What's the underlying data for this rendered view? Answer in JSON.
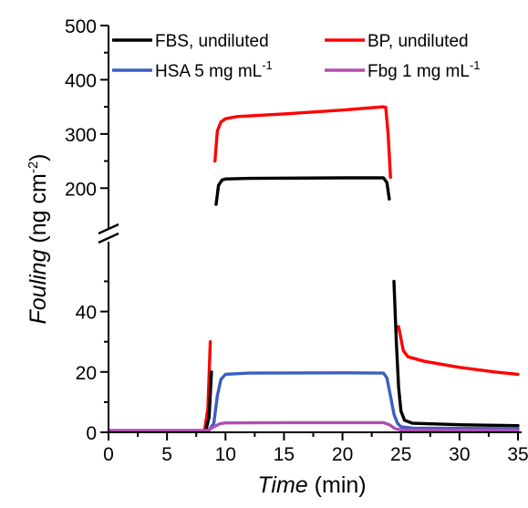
{
  "chart_data": {
    "type": "line",
    "xlabel": {
      "italic": "Time",
      "rest": " (min)"
    },
    "ylabel": {
      "italic": "Fouling",
      "rest": " (ng cm",
      "sup": "-2",
      "close": ")"
    },
    "xlim": [
      0,
      35
    ],
    "x_ticks": [
      "0",
      "5",
      "10",
      "15",
      "20",
      "25",
      "30",
      "35"
    ],
    "y_ticks_lower": [
      "0",
      "20",
      "40"
    ],
    "y_ticks_upper": [
      "200",
      "300",
      "400",
      "500"
    ],
    "y_axis_break": {
      "lower_range": [
        0,
        58
      ],
      "upper_range": [
        150,
        500
      ]
    },
    "legend": [
      {
        "text": "FBS, undiluted",
        "sup": "",
        "color": "#000000"
      },
      {
        "text": "BP, undiluted",
        "sup": "",
        "color": "#ff0000"
      },
      {
        "text": "HSA 5 mg mL",
        "sup": "-1",
        "color": "#3b5fc0"
      },
      {
        "text": "Fbg 1 mg mL",
        "sup": "-1",
        "color": "#b04fb0"
      }
    ],
    "series": [
      {
        "name": "BP, undiluted",
        "color": "#ff0000",
        "points": [
          [
            0,
            0
          ],
          [
            8.2,
            0.3
          ],
          [
            8.5,
            8
          ],
          [
            8.7,
            30
          ],
          [
            8.9,
            120
          ],
          [
            9.1,
            250
          ],
          [
            9.3,
            305
          ],
          [
            9.6,
            322
          ],
          [
            10,
            328
          ],
          [
            11,
            332
          ],
          [
            15,
            337
          ],
          [
            20,
            344
          ],
          [
            23.5,
            350
          ],
          [
            23.7,
            349
          ],
          [
            23.9,
            300
          ],
          [
            24.1,
            220
          ],
          [
            24.3,
            140
          ],
          [
            24.5,
            60
          ],
          [
            24.8,
            35
          ],
          [
            25.2,
            27
          ],
          [
            25.6,
            25
          ],
          [
            27,
            23.5
          ],
          [
            30,
            21.5
          ],
          [
            33,
            20
          ],
          [
            35,
            19.2
          ]
        ]
      },
      {
        "name": "FBS, undiluted",
        "color": "#000000",
        "points": [
          [
            0,
            0.2
          ],
          [
            8.3,
            0.3
          ],
          [
            8.6,
            5
          ],
          [
            8.8,
            20
          ],
          [
            9.0,
            70
          ],
          [
            9.2,
            170
          ],
          [
            9.4,
            205
          ],
          [
            9.7,
            215
          ],
          [
            10,
            217
          ],
          [
            12,
            218
          ],
          [
            20,
            219
          ],
          [
            23.5,
            219
          ],
          [
            23.8,
            210
          ],
          [
            24.0,
            180
          ],
          [
            24.2,
            120
          ],
          [
            24.4,
            50
          ],
          [
            24.6,
            30
          ],
          [
            24.8,
            15
          ],
          [
            25.0,
            7
          ],
          [
            25.3,
            4
          ],
          [
            26,
            3
          ],
          [
            30,
            2.5
          ],
          [
            35,
            2.2
          ]
        ]
      },
      {
        "name": "HSA 5 mg mL-1",
        "color": "#3b5fc0",
        "points": [
          [
            0,
            0.1
          ],
          [
            8.5,
            0.2
          ],
          [
            9.0,
            3
          ],
          [
            9.3,
            12
          ],
          [
            9.6,
            17.5
          ],
          [
            10,
            19.2
          ],
          [
            12,
            19.6
          ],
          [
            20,
            19.7
          ],
          [
            23.5,
            19.6
          ],
          [
            23.8,
            18
          ],
          [
            24.1,
            12
          ],
          [
            24.4,
            6
          ],
          [
            24.7,
            3
          ],
          [
            25,
            1.8
          ],
          [
            26,
            1.4
          ],
          [
            35,
            1.2
          ]
        ]
      },
      {
        "name": "Fbg 1 mg mL-1",
        "color": "#b04fb0",
        "points": [
          [
            0,
            0.6
          ],
          [
            8.5,
            0.6
          ],
          [
            9.0,
            1.8
          ],
          [
            9.5,
            2.8
          ],
          [
            10,
            3.1
          ],
          [
            15,
            3.2
          ],
          [
            20,
            3.2
          ],
          [
            23.5,
            3.2
          ],
          [
            24,
            2.5
          ],
          [
            24.5,
            1.2
          ],
          [
            25,
            0.8
          ],
          [
            35,
            0.7
          ]
        ]
      }
    ]
  }
}
